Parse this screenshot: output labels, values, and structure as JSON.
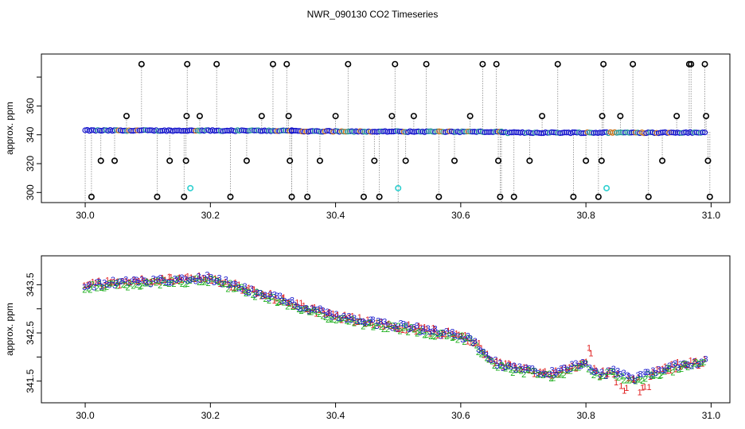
{
  "title": "NWR_090130  CO2 Timeseries",
  "chart_data": [
    {
      "type": "scatter",
      "name": "top-panel",
      "ylabel": "approx. ppm",
      "xlim": [
        29.93,
        31.03
      ],
      "ylim": [
        293,
        396
      ],
      "xticks": [
        30.0,
        30.2,
        30.4,
        30.6,
        30.8,
        31.0
      ],
      "xtick_labels": [
        "30.0",
        "30.2",
        "30.4",
        "30.6",
        "30.8",
        "31.0"
      ],
      "yticks": [
        300,
        320,
        340,
        360,
        380
      ],
      "ytick_labels": [
        "300",
        "320",
        "340",
        "360",
        ""
      ],
      "baseline": {
        "segments": [
          {
            "x0": 30.0,
            "x1": 30.33,
            "y0": 343.0,
            "y1": 342.8
          },
          {
            "x0": 30.33,
            "x1": 30.665,
            "y0": 342.5,
            "y1": 342.0
          },
          {
            "x0": 30.665,
            "x1": 30.99,
            "y0": 341.5,
            "y1": 341.5
          }
        ]
      },
      "spikes": [
        [
          30.01,
          297
        ],
        [
          30.025,
          322
        ],
        [
          30.047,
          322
        ],
        [
          30.066,
          353
        ],
        [
          30.09,
          389
        ],
        [
          30.115,
          297
        ],
        [
          30.135,
          322
        ],
        [
          30.158,
          297
        ],
        [
          30.161,
          322
        ],
        [
          30.162,
          353
        ],
        [
          30.163,
          389
        ],
        [
          30.183,
          353
        ],
        [
          30.21,
          389
        ],
        [
          30.232,
          297
        ],
        [
          30.258,
          322
        ],
        [
          30.282,
          353
        ],
        [
          30.3,
          389
        ],
        [
          30.322,
          389
        ],
        [
          30.325,
          353
        ],
        [
          30.327,
          322
        ],
        [
          30.33,
          297
        ],
        [
          30.355,
          297
        ],
        [
          30.375,
          322
        ],
        [
          30.4,
          353
        ],
        [
          30.42,
          389
        ],
        [
          30.445,
          297
        ],
        [
          30.462,
          322
        ],
        [
          30.47,
          297
        ],
        [
          30.49,
          353
        ],
        [
          30.495,
          389
        ],
        [
          30.512,
          322
        ],
        [
          30.525,
          353
        ],
        [
          30.545,
          389
        ],
        [
          30.565,
          297
        ],
        [
          30.59,
          322
        ],
        [
          30.615,
          353
        ],
        [
          30.635,
          389
        ],
        [
          30.657,
          389
        ],
        [
          30.66,
          322
        ],
        [
          30.663,
          297
        ],
        [
          30.685,
          297
        ],
        [
          30.71,
          322
        ],
        [
          30.73,
          353
        ],
        [
          30.755,
          389
        ],
        [
          30.78,
          297
        ],
        [
          30.8,
          322
        ],
        [
          30.82,
          297
        ],
        [
          30.825,
          322
        ],
        [
          30.826,
          353
        ],
        [
          30.828,
          389
        ],
        [
          30.855,
          353
        ],
        [
          30.875,
          389
        ],
        [
          30.9,
          297
        ],
        [
          30.922,
          322
        ],
        [
          30.945,
          353
        ],
        [
          30.965,
          389
        ],
        [
          30.968,
          389
        ],
        [
          30.99,
          389
        ],
        [
          30.992,
          353
        ],
        [
          30.995,
          322
        ],
        [
          30.998,
          297
        ]
      ],
      "cyan_points": [
        [
          30.168,
          303
        ],
        [
          30.5,
          303
        ],
        [
          30.833,
          303
        ]
      ]
    },
    {
      "type": "scatter",
      "name": "bottom-panel",
      "ylabel": "approx. ppm",
      "xlim": [
        29.93,
        31.03
      ],
      "ylim": [
        341.05,
        344.1
      ],
      "xticks": [
        30.0,
        30.2,
        30.4,
        30.6,
        30.8,
        31.0
      ],
      "xtick_labels": [
        "30.0",
        "30.2",
        "30.4",
        "30.6",
        "30.8",
        "31.0"
      ],
      "yticks": [
        341.5,
        342.0,
        342.5,
        343.0,
        343.5
      ],
      "ytick_labels": [
        "341.5",
        "",
        "342.5",
        "",
        "343.5"
      ],
      "series_labels": [
        "1",
        "2",
        "3"
      ],
      "series_colors": [
        "#e02020",
        "#20b020",
        "#1a1acc"
      ],
      "trend": [
        [
          30.0,
          343.5
        ],
        [
          30.05,
          343.55
        ],
        [
          30.1,
          343.58
        ],
        [
          30.15,
          343.62
        ],
        [
          30.2,
          343.65
        ],
        [
          30.25,
          343.45
        ],
        [
          30.3,
          343.25
        ],
        [
          30.35,
          343.05
        ],
        [
          30.4,
          342.85
        ],
        [
          30.45,
          342.75
        ],
        [
          30.5,
          342.65
        ],
        [
          30.55,
          342.55
        ],
        [
          30.6,
          342.45
        ],
        [
          30.62,
          342.35
        ],
        [
          30.64,
          342.05
        ],
        [
          30.66,
          341.85
        ],
        [
          30.7,
          341.75
        ],
        [
          30.75,
          341.65
        ],
        [
          30.8,
          341.9
        ],
        [
          30.82,
          341.65
        ],
        [
          30.85,
          341.7
        ],
        [
          30.87,
          341.55
        ],
        [
          30.88,
          341.55
        ],
        [
          30.9,
          341.65
        ],
        [
          30.95,
          341.85
        ],
        [
          30.99,
          341.9
        ]
      ]
    }
  ]
}
